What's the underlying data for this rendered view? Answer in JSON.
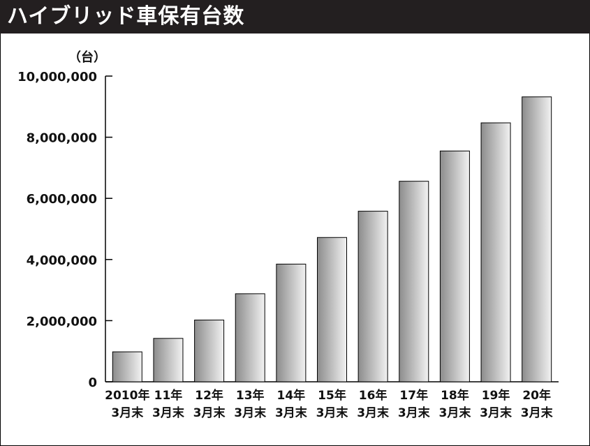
{
  "header": {
    "title": "ハイブリッド車保有台数"
  },
  "colors": {
    "title_bg": "#231f20",
    "title_fg": "#ffffff",
    "bar_dark": "#8c8c8c",
    "bar_light": "#f2f2f2"
  },
  "chart_data": {
    "type": "bar",
    "title": "ハイブリッド車保有台数",
    "unit": "（台）",
    "categories": [
      [
        "2010年",
        "3月末"
      ],
      [
        "11年",
        "3月末"
      ],
      [
        "12年",
        "3月末"
      ],
      [
        "13年",
        "3月末"
      ],
      [
        "14年",
        "3月末"
      ],
      [
        "15年",
        "3月末"
      ],
      [
        "16年",
        "3月末"
      ],
      [
        "17年",
        "3月末"
      ],
      [
        "18年",
        "3月末"
      ],
      [
        "19年",
        "3月末"
      ],
      [
        "20年",
        "3月末"
      ]
    ],
    "values": [
      980000,
      1420000,
      2020000,
      2880000,
      3850000,
      4720000,
      5580000,
      6560000,
      7550000,
      8470000,
      9320000
    ],
    "ylim": [
      0,
      10000000
    ],
    "yticks": [
      0,
      2000000,
      4000000,
      6000000,
      8000000,
      10000000
    ],
    "ytick_labels": [
      "0",
      "2,000,000",
      "4,000,000",
      "6,000,000",
      "8,000,000",
      "10,000,000"
    ],
    "grid": false,
    "legend": "none"
  }
}
